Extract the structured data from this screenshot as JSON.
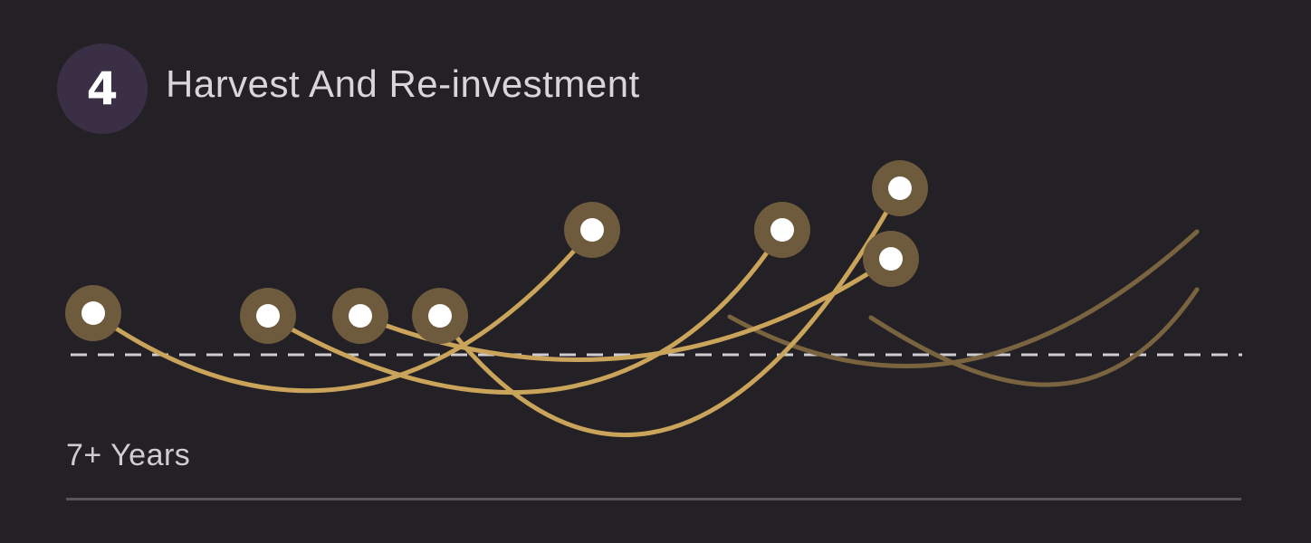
{
  "step": {
    "number": "4",
    "title": "Harvest And Re-investment"
  },
  "duration": {
    "label": "7+ Years"
  },
  "colors": {
    "background": "#232026",
    "badge": "#3a2f44",
    "curve_gold": "#c9a45a",
    "curve_faded": "#7a6440",
    "node_halo": "#6e5a3c",
    "node_core": "#ffffff",
    "baseline_dash": "#cfcdd2",
    "rule": "#57545a"
  }
}
